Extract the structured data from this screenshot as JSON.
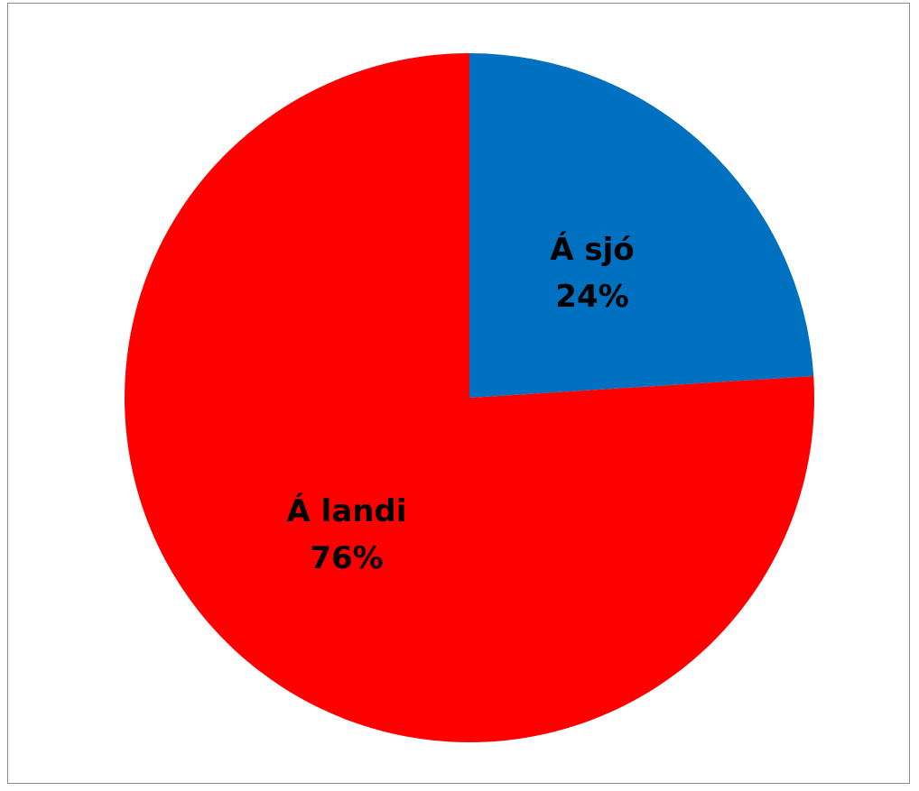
{
  "chart_data": {
    "type": "pie",
    "title": "",
    "slices": [
      {
        "label": "Á sjó",
        "value": 24,
        "percent_label": "24%",
        "color": "#0070C0"
      },
      {
        "label": "Á landi",
        "value": 76,
        "percent_label": "76%",
        "color": "#FF0000"
      }
    ],
    "legend": "none"
  }
}
